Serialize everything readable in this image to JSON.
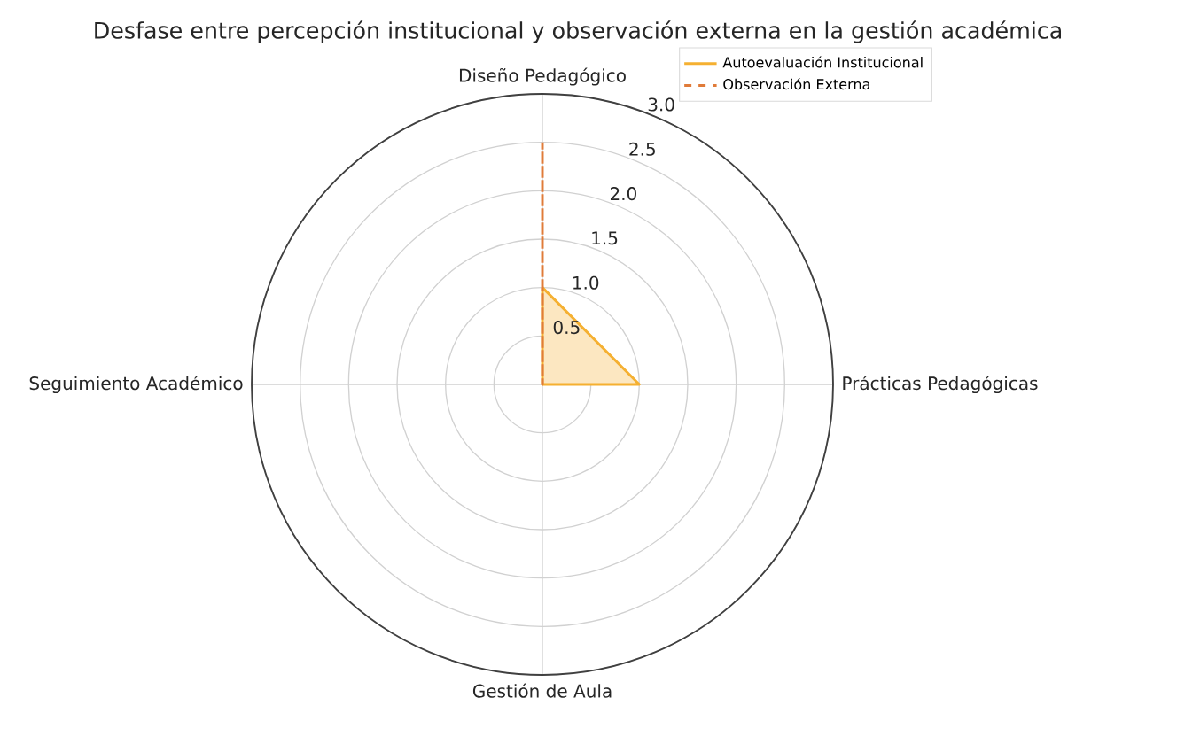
{
  "chart_data": {
    "type": "radar",
    "title": "Desfase entre percepción institucional y observación externa en la gestión académica",
    "categories": [
      "Diseño Pedagógico",
      "Prácticas Pedagógicas",
      "Gestión de Aula",
      "Seguimiento Académico"
    ],
    "series": [
      {
        "name": "Autoevaluación Institucional",
        "color": "#f5b031",
        "values": [
          1.0,
          1.0,
          0,
          0
        ],
        "line_style": "solid"
      },
      {
        "name": "Observación Externa",
        "color": "#e07b39",
        "values": [
          2.5,
          0,
          0,
          0
        ],
        "line_style": "dashed"
      }
    ],
    "ylim": [
      0,
      3
    ],
    "yticks": [
      0.5,
      {
        "value": 1,
        "label": "1.0"
      },
      1.5,
      {
        "value": 2,
        "label": "2.0"
      },
      2.5,
      {
        "value": 3,
        "label": "3.0"
      }
    ],
    "grid": true,
    "legend": "top right"
  }
}
